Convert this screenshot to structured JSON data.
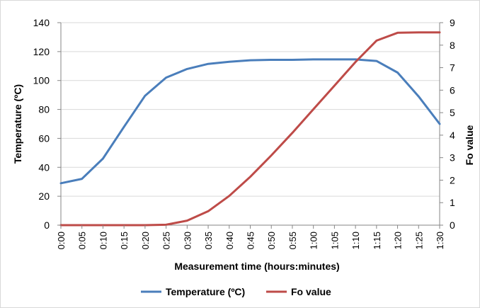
{
  "chart_data": {
    "type": "line",
    "xlabel": "Measurement time (hours:minutes)",
    "ylabel": "Temperature (ºC)",
    "y2label": "Fo value",
    "x": [
      "0:00",
      "0:05",
      "0:10",
      "0:15",
      "0:20",
      "0:25",
      "0:30",
      "0:35",
      "0:40",
      "0:45",
      "0:50",
      "0:55",
      "1:00",
      "1:05",
      "1:10",
      "1:15",
      "1:20",
      "1:25",
      "1:30"
    ],
    "ylim": [
      0,
      140
    ],
    "yticks": [
      0,
      20,
      40,
      60,
      80,
      100,
      120,
      140
    ],
    "y2lim": [
      0,
      9
    ],
    "y2ticks": [
      0,
      1,
      2,
      3,
      4,
      5,
      6,
      7,
      8,
      9
    ],
    "grid": "horizontal",
    "legend": "bottom",
    "series": [
      {
        "name": "Temperature (ºC)",
        "axis": "left",
        "color": "#4a7ebb",
        "values": [
          29,
          32,
          46,
          68,
          89.5,
          102,
          108,
          111.5,
          113,
          114,
          114.3,
          114.3,
          114.6,
          114.6,
          114.6,
          113.5,
          105.5,
          89,
          70
        ]
      },
      {
        "name": "Fo value",
        "axis": "right",
        "color": "#be4b48",
        "values": [
          0,
          0,
          0,
          0,
          0,
          0.02,
          0.2,
          0.62,
          1.3,
          2.15,
          3.1,
          4.1,
          5.15,
          6.2,
          7.25,
          8.2,
          8.55,
          8.57,
          8.57
        ]
      }
    ]
  }
}
